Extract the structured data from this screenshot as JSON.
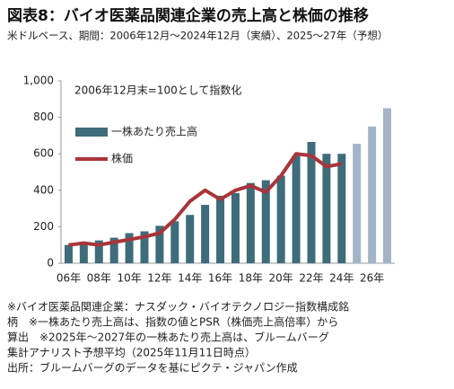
{
  "chart_data": {
    "type": "bar_line",
    "title": "図表8：バイオ医薬品関連企業の売上高と株価の推移",
    "subtitle": "米ドルベース、期間：2006年12月～2024年12月（実績）、2025～27年（予想）",
    "annotation": "2006年12月末=100として指数化",
    "categories": [
      "06年",
      null,
      "08年",
      null,
      "10年",
      null,
      "12年",
      null,
      "14年",
      null,
      "16年",
      null,
      "18年",
      null,
      "20年",
      null,
      "22年",
      null,
      "24年",
      null,
      "26年",
      null
    ],
    "series": [
      {
        "name": "一株あたり売上高",
        "type": "bar",
        "color": "#3e6c7b",
        "colors": [
          "#3e6c7b",
          "#3e6c7b",
          "#3e6c7b",
          "#3e6c7b",
          "#3e6c7b",
          "#3e6c7b",
          "#3e6c7b",
          "#3e6c7b",
          "#3e6c7b",
          "#3e6c7b",
          "#3e6c7b",
          "#3e6c7b",
          "#3e6c7b",
          "#3e6c7b",
          "#3e6c7b",
          "#3e6c7b",
          "#3e6c7b",
          "#3e6c7b",
          "#3e6c7b",
          "#a3b4c8",
          "#a3b4c8",
          "#a3b4c8"
        ],
        "values": [
          100,
          110,
          125,
          140,
          165,
          175,
          205,
          230,
          265,
          320,
          370,
          385,
          440,
          455,
          480,
          590,
          665,
          600,
          600,
          655,
          750,
          850
        ]
      },
      {
        "name": "株価",
        "type": "line",
        "color": "#a8353a",
        "values": [
          100,
          110,
          100,
          115,
          130,
          145,
          165,
          240,
          340,
          400,
          350,
          400,
          425,
          390,
          480,
          600,
          590,
          530,
          545,
          null,
          null,
          null
        ]
      }
    ],
    "ylim": [
      0,
      1000
    ],
    "yticks": [
      0,
      200,
      400,
      600,
      800,
      {
        "value": 1000,
        "label": "1,000"
      }
    ],
    "grid": false,
    "notes": [
      "※バイオ医薬品関連企業：ナスダック・バイオテクノロジー指数構成銘",
      "柄　※一株あたり売上高は、指数の値とPSR（株価売上高倍率）から",
      "算出　※2025年～2027年の一株あたり売上高は、ブルームバーグ",
      "集計アナリスト予想平均（2025年11月11日時点）",
      "出所：ブルームバーグのデータを基にピクテ・ジャパン作成"
    ]
  }
}
